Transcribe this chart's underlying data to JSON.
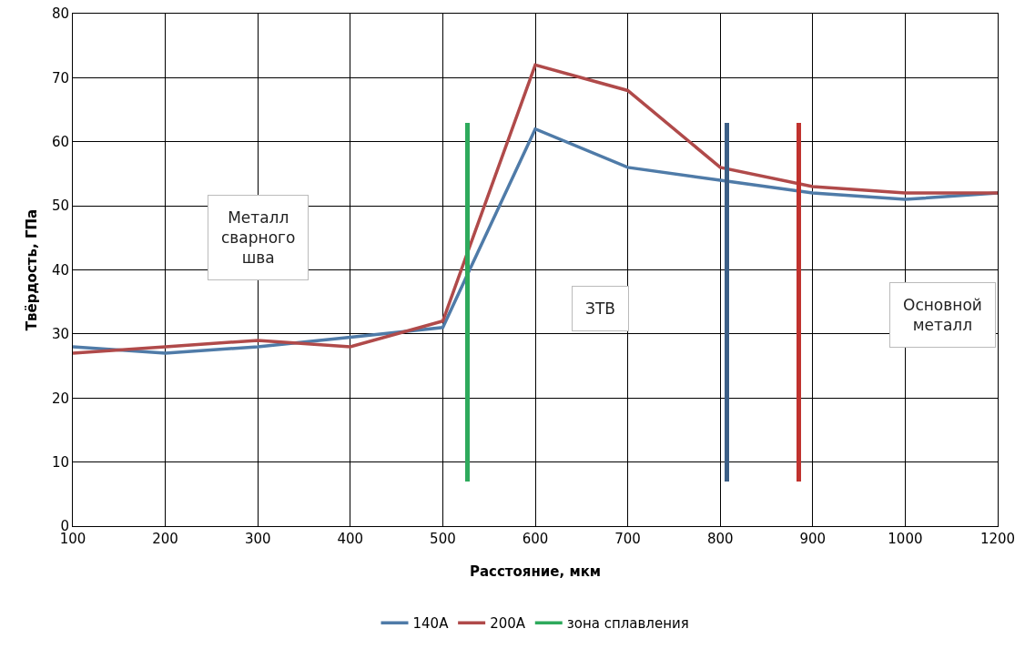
{
  "chart_data": {
    "type": "line",
    "xlabel": "Расстояние, мкм",
    "ylabel": "Твёрдость, ГПа",
    "categories": [
      "100",
      "200",
      "300",
      "400",
      "500",
      "600",
      "700",
      "800",
      "900",
      "1000",
      "1200"
    ],
    "series": [
      {
        "name": "140A",
        "color": "#4f7ba8",
        "values": [
          28,
          27,
          28,
          29.5,
          31,
          62,
          56,
          54,
          52,
          51,
          52
        ]
      },
      {
        "name": "200A",
        "color": "#b04a4a",
        "values": [
          27,
          28,
          29,
          28,
          32,
          72,
          68,
          56,
          53,
          52,
          52
        ]
      },
      {
        "name": "зона сплавления",
        "color": "#2eaa5c",
        "values": [
          null,
          null,
          null,
          null,
          null,
          null,
          null,
          null,
          null,
          null,
          null
        ]
      }
    ],
    "ylim": [
      0,
      80
    ],
    "yticks": [
      0,
      10,
      20,
      30,
      40,
      50,
      60,
      70,
      80
    ],
    "annotations": [
      "Металл\nсварного\nшва",
      "ЗТВ",
      "Основной\nметалл"
    ],
    "grid": true,
    "legend": "bottom",
    "marker": "none",
    "line_style": "solid"
  }
}
